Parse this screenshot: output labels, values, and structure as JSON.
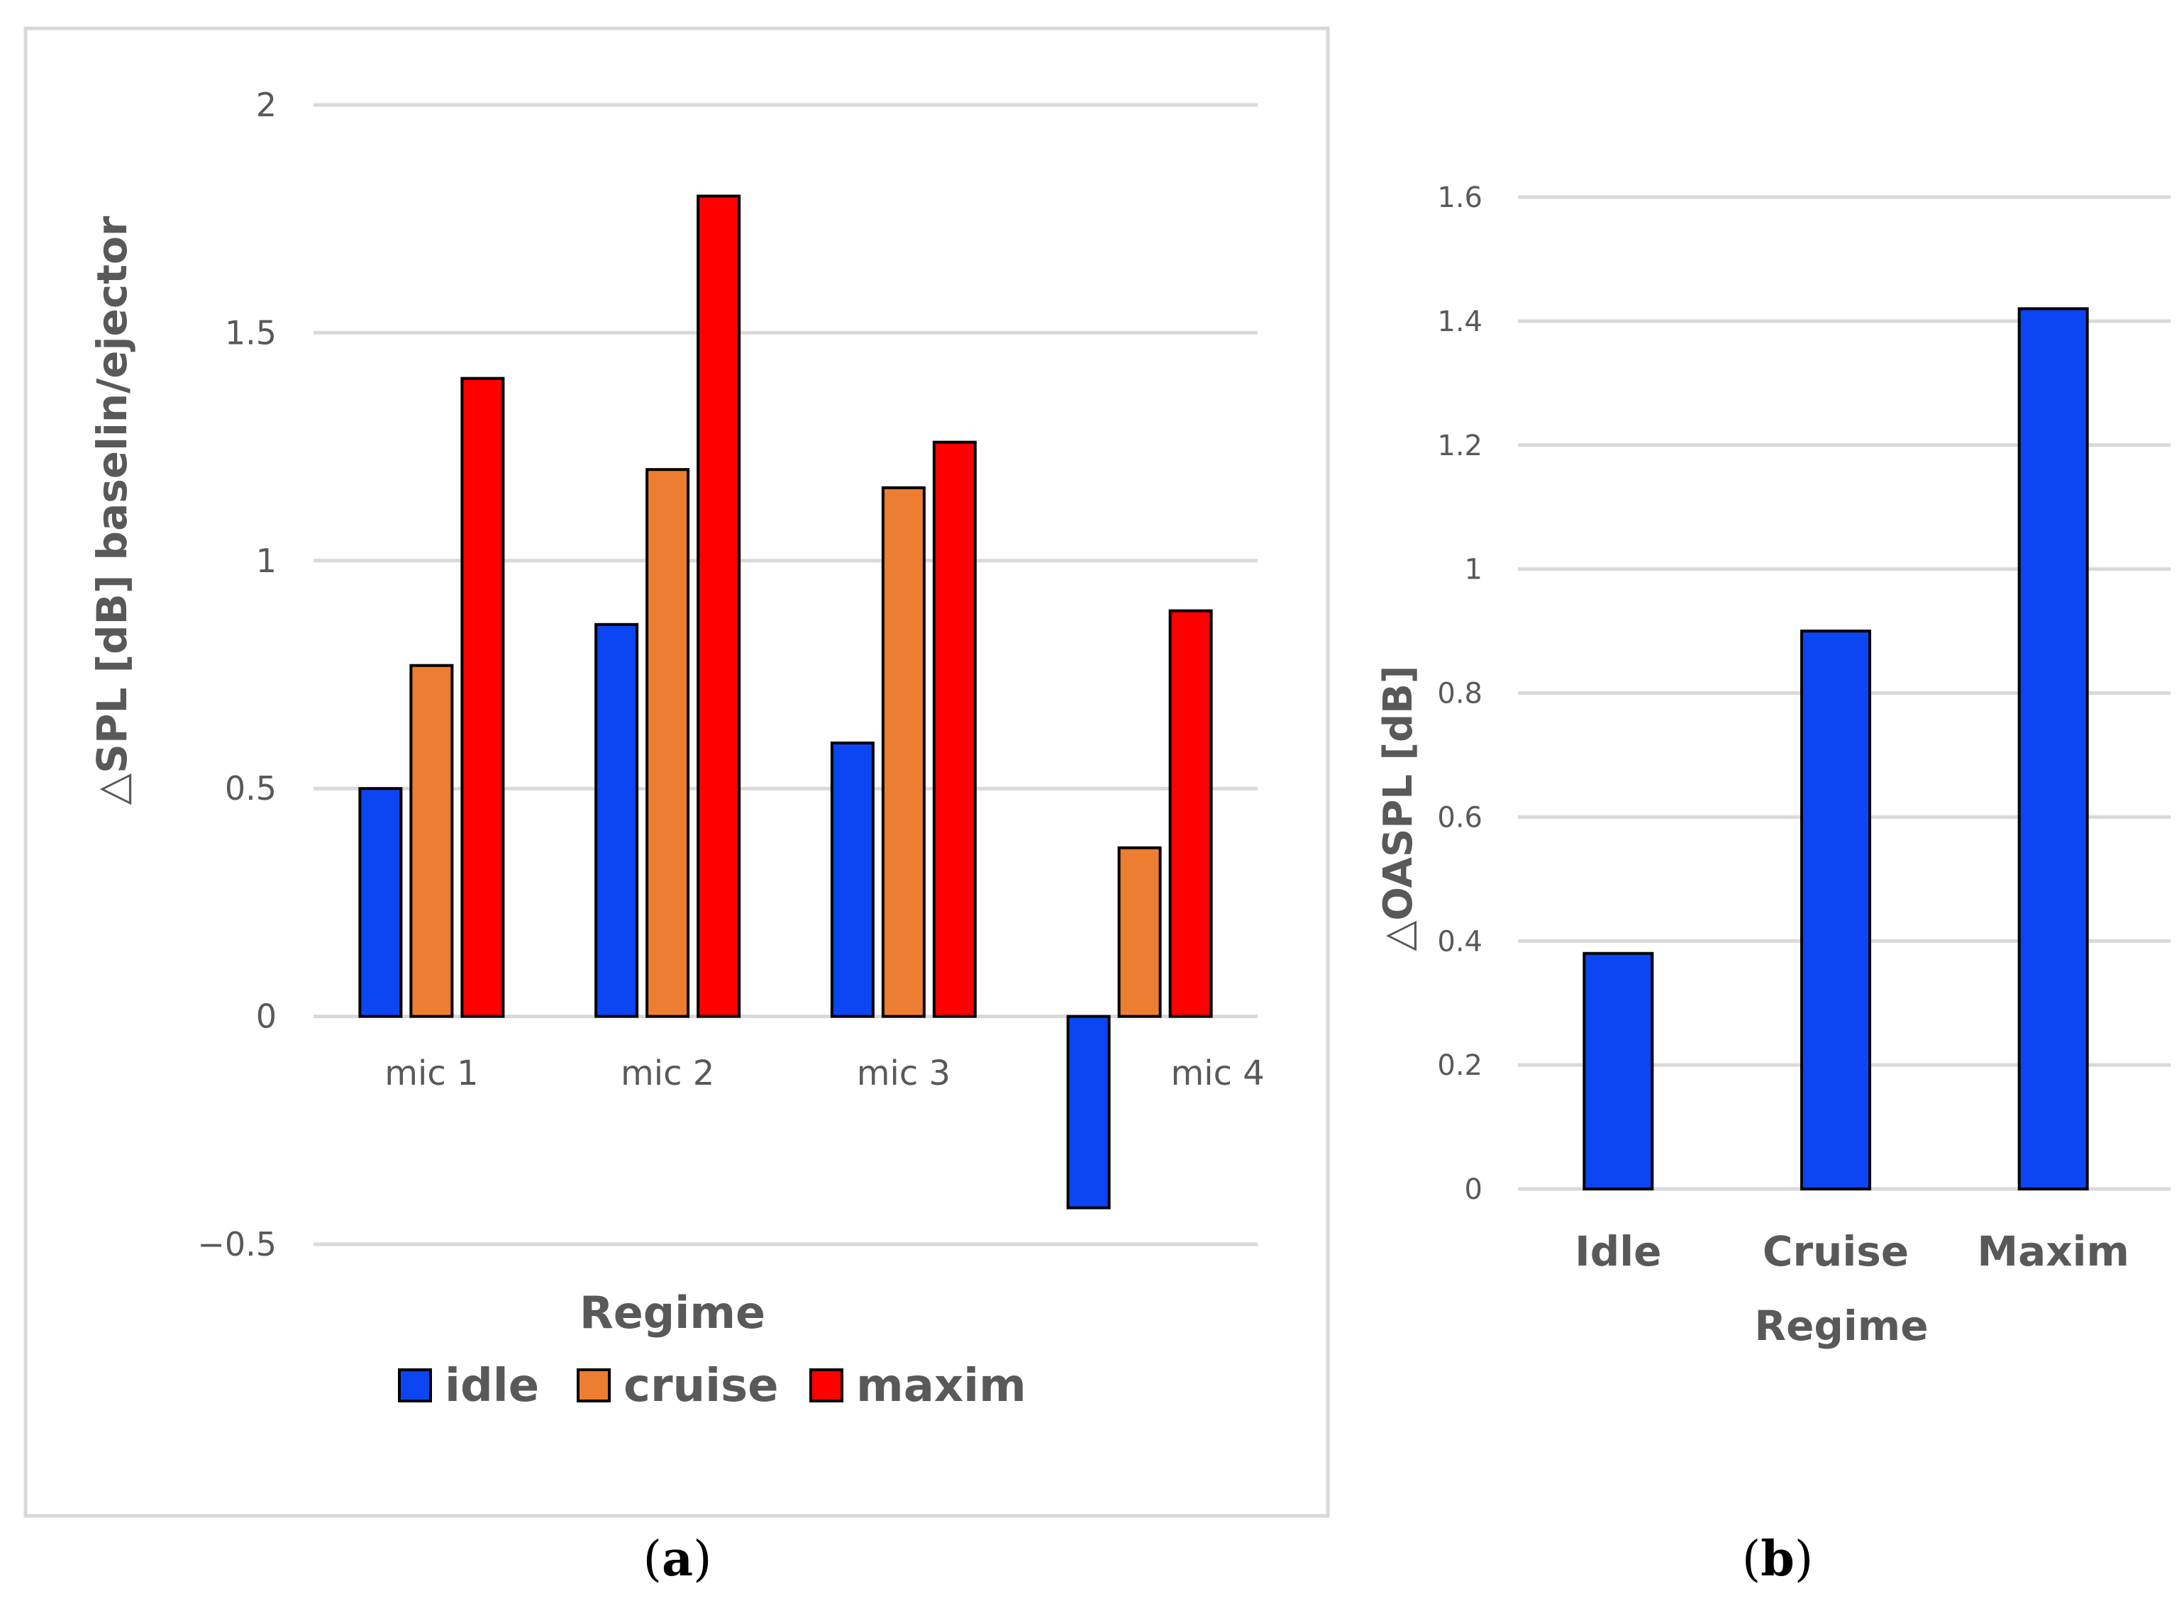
{
  "colors": {
    "idle": "#0b46f2",
    "cruise": "#ed7d31",
    "maxim": "#ff0000",
    "single": "#0b46f2",
    "grid": "#d9d9d9",
    "axis_text": "#595959",
    "border": "#d9d9d9"
  },
  "chart_data": [
    {
      "type": "bar",
      "panel_label": "a",
      "categories": [
        "mic 1",
        "mic 2",
        "mic 3",
        "mic 4"
      ],
      "series": [
        {
          "name": "idle",
          "values": [
            0.5,
            0.86,
            0.6,
            -0.42
          ]
        },
        {
          "name": "cruise",
          "values": [
            0.77,
            1.2,
            1.16,
            0.37
          ]
        },
        {
          "name": "maxim",
          "values": [
            1.4,
            1.8,
            1.26,
            0.89
          ]
        }
      ],
      "title": "",
      "xlabel": "Regime",
      "ylabel": "SPL [dB] baselin/ejector",
      "ylabel_symbol": "△",
      "ylim": [
        -0.5,
        2
      ],
      "yticks": [
        "−0.5",
        "0",
        "0.5",
        "1",
        "1.5",
        "2"
      ],
      "legend": [
        "idle",
        "cruise",
        "maxim"
      ],
      "legend_position": "bottom",
      "grid": true
    },
    {
      "type": "bar",
      "panel_label": "b",
      "categories": [
        "Idle",
        "Cruise",
        "Maxim"
      ],
      "values": [
        0.38,
        0.9,
        1.42
      ],
      "title": "",
      "xlabel": "Regime",
      "ylabel": "OASPL [dB]",
      "ylabel_symbol": "△",
      "ylim": [
        0,
        1.6
      ],
      "yticks": [
        "0",
        "0.2",
        "0.4",
        "0.6",
        "0.8",
        "1",
        "1.2",
        "1.4",
        "1.6"
      ],
      "grid": true
    }
  ]
}
